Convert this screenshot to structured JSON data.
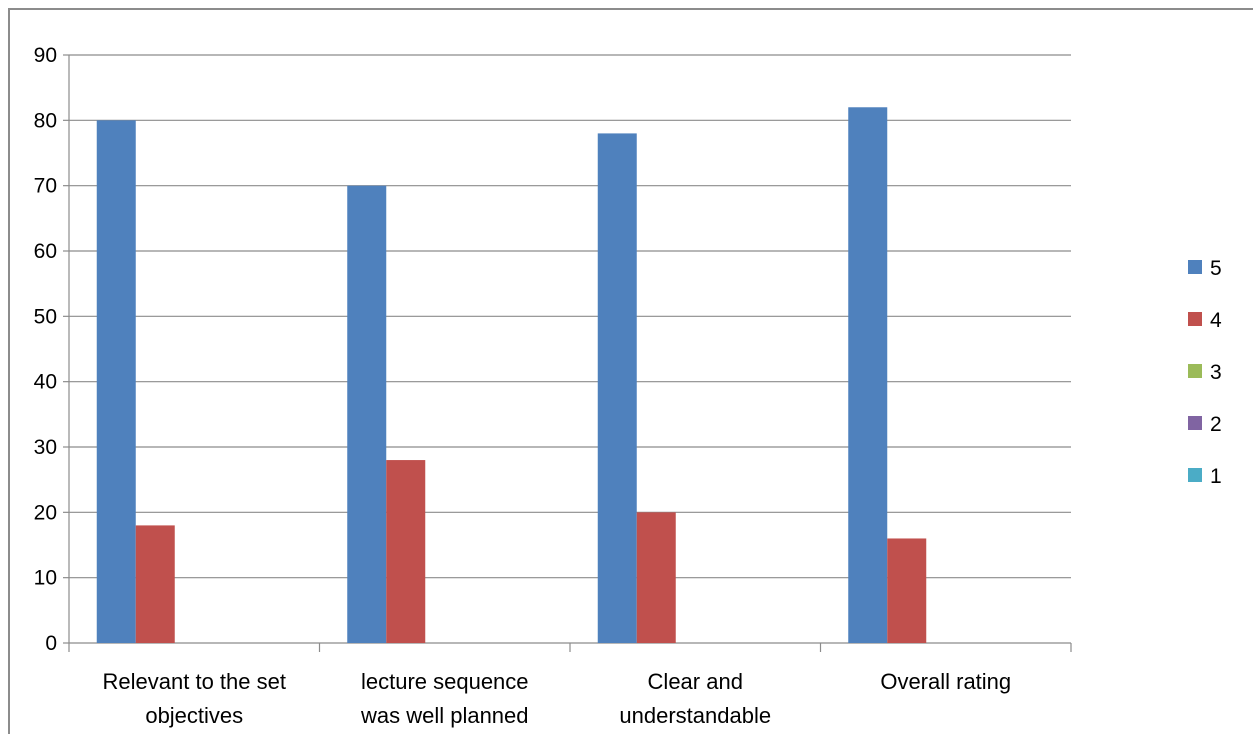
{
  "chart_data": {
    "type": "bar",
    "categories": [
      [
        "Relevant to the set",
        "objectives"
      ],
      [
        "lecture sequence",
        "was well planned"
      ],
      [
        "Clear and",
        "understandable"
      ],
      [
        "Overall rating"
      ]
    ],
    "series": [
      {
        "name": "5",
        "color": "#4f81bd",
        "values": [
          80,
          70,
          78,
          82
        ]
      },
      {
        "name": "4",
        "color": "#c0504d",
        "values": [
          18,
          28,
          20,
          16
        ]
      },
      {
        "name": "3",
        "color": "#9bbb59",
        "values": [
          0,
          0,
          0,
          0
        ]
      },
      {
        "name": "2",
        "color": "#8064a2",
        "values": [
          0,
          0,
          0,
          0
        ]
      },
      {
        "name": "1",
        "color": "#4bacc6",
        "values": [
          0,
          0,
          0,
          0
        ]
      }
    ],
    "ylim": [
      0,
      90
    ],
    "yticks": [
      0,
      10,
      20,
      30,
      40,
      50,
      60,
      70,
      80,
      90
    ],
    "grid": true,
    "legend": "right"
  }
}
